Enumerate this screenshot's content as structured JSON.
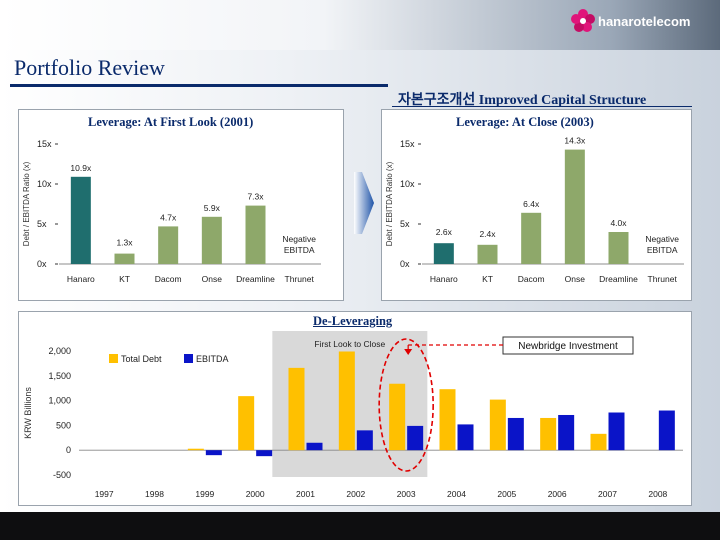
{
  "header": {
    "logo_text": "hanarotelecom",
    "title": "Portfolio Review",
    "subtitle": "자본구조개선 Improved Capital Structure"
  },
  "chart_data": [
    {
      "type": "bar",
      "title": "Leverage: At First Look (2001)",
      "ylabel": "Debt / EBITDA Ratio (x)",
      "yticks": [
        "0x",
        "5x",
        "10x",
        "15x"
      ],
      "ylim": [
        0,
        15
      ],
      "categories": [
        "Hanaro",
        "KT",
        "Dacom",
        "Onse",
        "Dreamline",
        "Thrunet"
      ],
      "values": [
        10.9,
        1.3,
        4.7,
        5.9,
        7.3,
        null
      ],
      "labels": [
        "10.9x",
        "1.3x",
        "4.7x",
        "5.9x",
        "7.3x",
        "Negative EBITDA"
      ],
      "colors": [
        "#1f6e6e",
        "#8ea86a",
        "#8ea86a",
        "#8ea86a",
        "#8ea86a",
        "#8ea86a"
      ]
    },
    {
      "type": "bar",
      "title": "Leverage: At Close (2003)",
      "ylabel": "Debt / EBITDA Ratio (x)",
      "yticks": [
        "0x",
        "5x",
        "10x",
        "15x"
      ],
      "ylim": [
        0,
        15
      ],
      "categories": [
        "Hanaro",
        "KT",
        "Dacom",
        "Onse",
        "Dreamline",
        "Thrunet"
      ],
      "values": [
        2.6,
        2.4,
        6.4,
        14.3,
        4.0,
        null
      ],
      "labels": [
        "2.6x",
        "2.4x",
        "6.4x",
        "14.3x",
        "4.0x",
        "Negative EBITDA"
      ],
      "colors": [
        "#1f6e6e",
        "#8ea86a",
        "#8ea86a",
        "#8ea86a",
        "#8ea86a",
        "#8ea86a"
      ]
    },
    {
      "type": "bar",
      "title": "De-Leveraging",
      "ylabel": "KRW Billions",
      "yticks": [
        "-500",
        "0",
        "500",
        "1,000",
        "1,500",
        "2,000"
      ],
      "ylim": [
        -500,
        2000
      ],
      "categories": [
        "1997",
        "1998",
        "1999",
        "2000",
        "2001",
        "2002",
        "2003",
        "2004",
        "2005",
        "2006",
        "2007",
        "2008"
      ],
      "series": [
        {
          "name": "Total Debt",
          "color": "#ffc000",
          "values": [
            0,
            0,
            30,
            1090,
            1660,
            1990,
            1340,
            1230,
            1020,
            650,
            330,
            null
          ]
        },
        {
          "name": "EBITDA",
          "color": "#0a14c8",
          "values": [
            0,
            0,
            -100,
            -120,
            150,
            400,
            490,
            520,
            650,
            710,
            760,
            800
          ]
        }
      ],
      "annotations": {
        "period_label": "First Look to Close",
        "callout": "Newbridge Investment"
      }
    }
  ]
}
